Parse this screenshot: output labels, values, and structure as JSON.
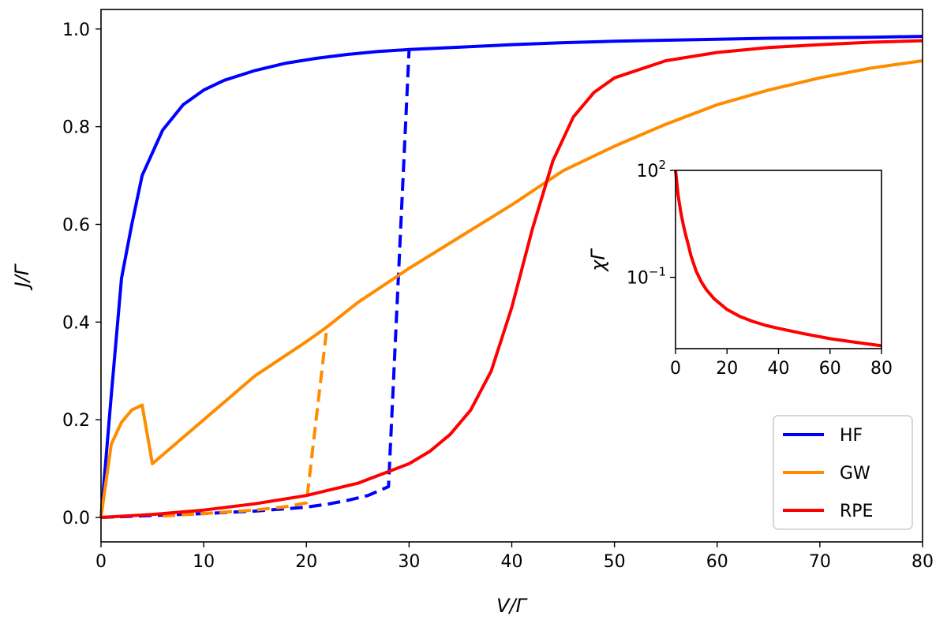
{
  "chart_data": {
    "type": "line",
    "xlabel": "V/Γ",
    "ylabel": "J/Γ",
    "xlim": [
      0,
      80
    ],
    "ylim": [
      -0.05,
      1.04
    ],
    "x_ticks": [
      0,
      10,
      20,
      30,
      40,
      50,
      60,
      70,
      80
    ],
    "y_ticks": [
      0.0,
      0.2,
      0.4,
      0.6,
      0.8,
      1.0
    ],
    "x_tick_labels": [
      "0",
      "10",
      "20",
      "30",
      "40",
      "50",
      "60",
      "70",
      "80"
    ],
    "y_tick_labels": [
      "0.0",
      "0.2",
      "0.4",
      "0.6",
      "0.8",
      "1.0"
    ],
    "grid": false,
    "legend_position": "bottom-right",
    "legend": [
      {
        "name": "HF",
        "color": "#0000ff"
      },
      {
        "name": "GW",
        "color": "#ff8c00"
      },
      {
        "name": "RPE",
        "color": "#ff0000"
      }
    ],
    "series": [
      {
        "name": "HF",
        "color": "#0000ff",
        "style": "solid",
        "x": [
          0,
          1,
          2,
          3,
          4,
          6,
          8,
          10,
          12,
          15,
          18,
          21,
          24,
          27,
          30,
          35,
          40,
          45,
          50,
          55,
          60,
          65,
          70,
          75,
          80
        ],
        "y": [
          0.0,
          0.25,
          0.49,
          0.6,
          0.7,
          0.793,
          0.845,
          0.875,
          0.895,
          0.915,
          0.93,
          0.94,
          0.948,
          0.954,
          0.958,
          0.963,
          0.968,
          0.972,
          0.975,
          0.977,
          0.979,
          0.981,
          0.982,
          0.983,
          0.985
        ]
      },
      {
        "name": "HF",
        "color": "#0000ff",
        "style": "dashed",
        "x": [
          0,
          5,
          10,
          15,
          20,
          22,
          24,
          26,
          28,
          30
        ],
        "y": [
          0.0,
          0.004,
          0.008,
          0.013,
          0.021,
          0.027,
          0.035,
          0.045,
          0.063,
          0.958
        ]
      },
      {
        "name": "GW",
        "color": "#ff8c00",
        "style": "solid",
        "x": [
          0,
          1,
          2,
          3,
          4,
          5,
          10,
          15,
          20,
          22,
          25,
          30,
          35,
          40,
          45,
          50,
          55,
          60,
          65,
          70,
          75,
          80
        ],
        "y": [
          0.0,
          0.15,
          0.195,
          0.22,
          0.23,
          0.11,
          0.2,
          0.29,
          0.36,
          0.39,
          0.44,
          0.51,
          0.575,
          0.64,
          0.71,
          0.76,
          0.805,
          0.845,
          0.875,
          0.9,
          0.92,
          0.935
        ]
      },
      {
        "name": "GW",
        "color": "#ff8c00",
        "style": "dashed",
        "x": [
          6,
          10,
          15,
          18,
          20,
          22
        ],
        "y": [
          0.003,
          0.008,
          0.015,
          0.022,
          0.03,
          0.39
        ]
      },
      {
        "name": "RPE",
        "color": "#ff0000",
        "style": "solid",
        "x": [
          0,
          5,
          10,
          15,
          20,
          25,
          30,
          32,
          34,
          36,
          38,
          40,
          42,
          44,
          46,
          48,
          50,
          55,
          60,
          65,
          70,
          75,
          80
        ],
        "y": [
          0.0,
          0.006,
          0.015,
          0.028,
          0.045,
          0.07,
          0.11,
          0.135,
          0.17,
          0.22,
          0.3,
          0.43,
          0.59,
          0.73,
          0.82,
          0.87,
          0.9,
          0.935,
          0.952,
          0.962,
          0.968,
          0.973,
          0.976
        ]
      }
    ],
    "inset": {
      "type": "line",
      "xlabel": "",
      "ylabel": "χΓ",
      "y_scale": "log",
      "xlim": [
        0,
        80
      ],
      "ylim": [
        0.001,
        100
      ],
      "x_ticks": [
        0,
        20,
        40,
        60,
        80
      ],
      "x_tick_labels": [
        "0",
        "20",
        "40",
        "60",
        "80"
      ],
      "y_ticks": [
        100,
        0.1
      ],
      "y_tick_labels": [
        {
          "base": "10",
          "exp": "2"
        },
        {
          "base": "10",
          "exp": "−1"
        }
      ],
      "series": [
        {
          "name": "RPE",
          "color": "#ff0000",
          "x": [
            0,
            1,
            2,
            3,
            4,
            5,
            6,
            8,
            10,
            12,
            15,
            20,
            25,
            30,
            35,
            40,
            50,
            60,
            70,
            80
          ],
          "y": [
            100,
            20,
            7,
            3,
            1.5,
            0.8,
            0.4,
            0.15,
            0.075,
            0.045,
            0.025,
            0.0125,
            0.008,
            0.0058,
            0.0045,
            0.0037,
            0.0026,
            0.0019,
            0.0015,
            0.0012
          ]
        }
      ]
    }
  }
}
